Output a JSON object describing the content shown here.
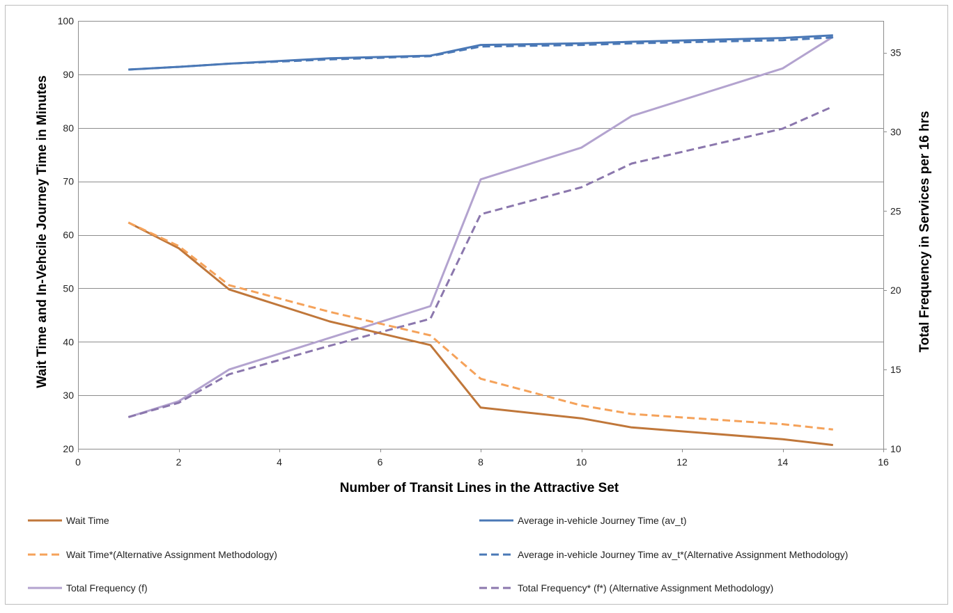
{
  "chart_data": {
    "type": "line",
    "xlabel": "Number of Transit Lines in the Attractive Set",
    "ylabel": "Wait Time and In-Vehcile Journey Time in Minutes",
    "y2label": "Total Frequency in Services per 16 hrs",
    "xlim": [
      0,
      16
    ],
    "ylim": [
      20,
      100
    ],
    "y2lim": [
      10,
      37
    ],
    "x_ticks": [
      "0",
      "2",
      "4",
      "6",
      "8",
      "10",
      "12",
      "14",
      "16"
    ],
    "y_ticks": [
      "20",
      "30",
      "40",
      "50",
      "60",
      "70",
      "80",
      "90",
      "100"
    ],
    "y2_ticks": [
      "10",
      "15",
      "20",
      "25",
      "30",
      "35"
    ],
    "grid": "horizontal",
    "legend_position": "bottom",
    "x": [
      1,
      2,
      3,
      5,
      7,
      8,
      10,
      11,
      14,
      15
    ],
    "series": [
      {
        "name": "Wait Time",
        "axis": "left",
        "style": "solid",
        "color": "#c0773a",
        "values": [
          62.3,
          57.5,
          49.8,
          43.8,
          39.4,
          27.7,
          25.7,
          24.0,
          21.8,
          20.7
        ]
      },
      {
        "name": "Average in-vehicle Journey Time (av_t)",
        "axis": "left",
        "style": "solid",
        "color": "#4a78b6",
        "values": [
          90.9,
          91.4,
          92.0,
          93.0,
          93.5,
          95.5,
          95.8,
          96.1,
          96.8,
          97.3
        ]
      },
      {
        "name": "Wait Time*(Alternative Assignment Methodology)",
        "axis": "left",
        "style": "dashed",
        "color": "#f5a25a",
        "values": [
          62.3,
          57.9,
          50.6,
          45.6,
          41.2,
          33.1,
          28.1,
          26.5,
          24.6,
          23.6
        ]
      },
      {
        "name": "Average in-vehicle Journey Time av_t*(Alternative Assignment Methodology)",
        "axis": "left",
        "style": "dashed",
        "color": "#4a78b6",
        "values": [
          90.9,
          91.4,
          92.0,
          92.8,
          93.4,
          95.2,
          95.5,
          95.8,
          96.4,
          96.9
        ]
      },
      {
        "name": "Total Frequency (f)",
        "axis": "right",
        "style": "solid",
        "color": "#b3a3cf",
        "values": [
          12.0,
          13.0,
          15.0,
          17.0,
          19.0,
          27.0,
          29.0,
          31.0,
          34.0,
          36.0
        ]
      },
      {
        "name": "Total Frequency* (f*) (Alternative Assignment Methodology)",
        "axis": "right",
        "style": "dashed",
        "color": "#8b77ad",
        "values": [
          12.0,
          12.9,
          14.7,
          16.5,
          18.2,
          24.8,
          26.5,
          28.0,
          30.2,
          31.6
        ]
      }
    ]
  }
}
